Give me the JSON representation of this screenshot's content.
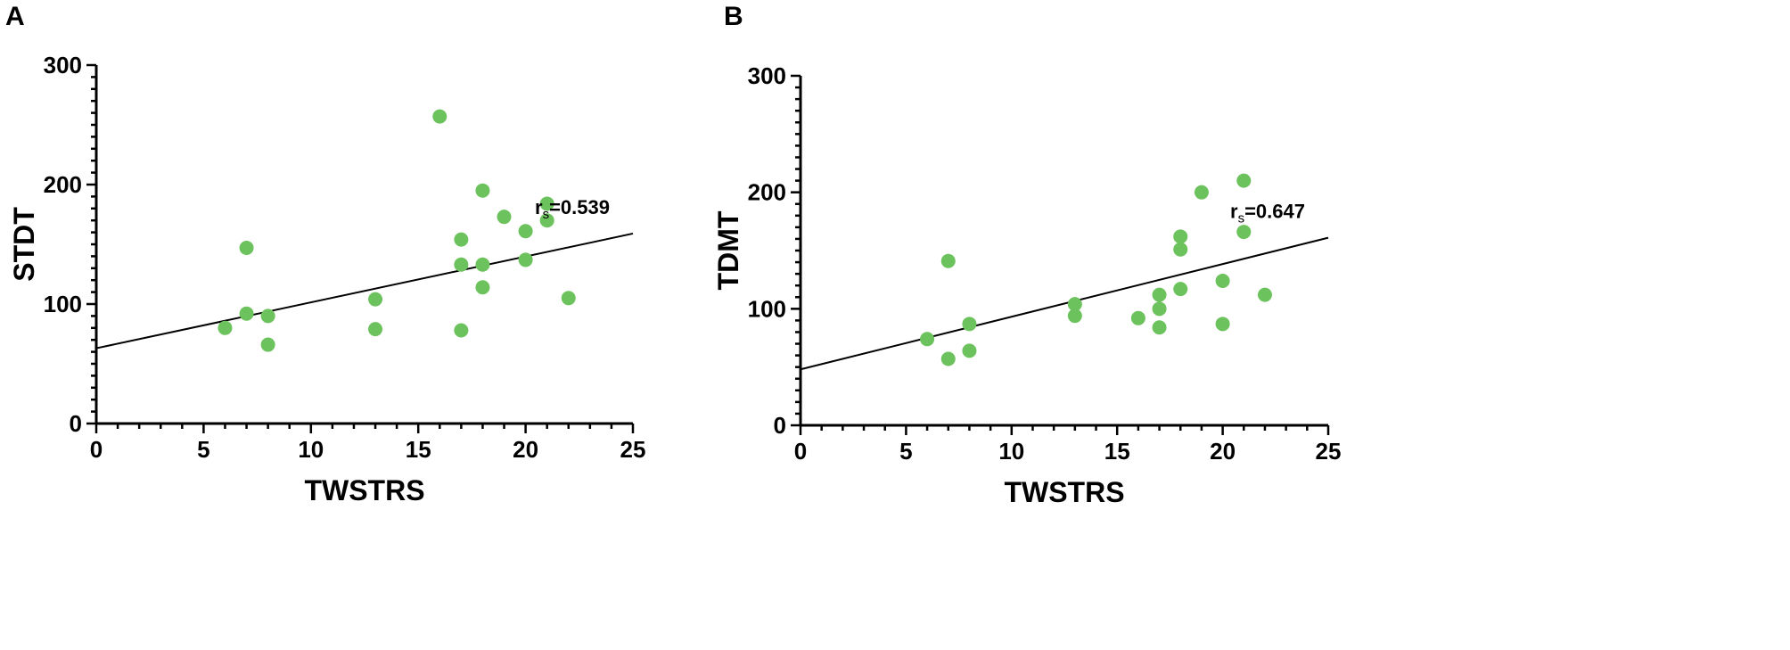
{
  "chart_data": [
    {
      "panel": "A",
      "type": "scatter",
      "xlabel": "TWSTRS",
      "ylabel": "STDT",
      "xlim": [
        0,
        25
      ],
      "ylim": [
        0,
        300
      ],
      "xticks": [
        "0",
        "5",
        "10",
        "15",
        "20",
        "25"
      ],
      "yticks": [
        "0",
        "100",
        "200",
        "300"
      ],
      "annotation": {
        "r": "r",
        "sub": "s",
        "value": "=0.539"
      },
      "regression_line": {
        "x": [
          0,
          25
        ],
        "y": [
          63,
          159
        ]
      },
      "points": [
        [
          6,
          80
        ],
        [
          7,
          147
        ],
        [
          7,
          92
        ],
        [
          8,
          90
        ],
        [
          8,
          66
        ],
        [
          13,
          104
        ],
        [
          13,
          79
        ],
        [
          16,
          257
        ],
        [
          17,
          154
        ],
        [
          17,
          133
        ],
        [
          17,
          78
        ],
        [
          18,
          195
        ],
        [
          18,
          133
        ],
        [
          18,
          114
        ],
        [
          19,
          173
        ],
        [
          20,
          161
        ],
        [
          20,
          137
        ],
        [
          21,
          184
        ],
        [
          21,
          170
        ],
        [
          22,
          105
        ]
      ],
      "color": "#6cc25c"
    },
    {
      "panel": "B",
      "type": "scatter",
      "xlabel": "TWSTRS",
      "ylabel": "TDMT",
      "xlim": [
        0,
        25
      ],
      "ylim": [
        0,
        300
      ],
      "xticks": [
        "0",
        "5",
        "10",
        "15",
        "20",
        "25"
      ],
      "yticks": [
        "0",
        "100",
        "200",
        "300"
      ],
      "annotation": {
        "r": "r",
        "sub": "s",
        "value": "=0.647"
      },
      "regression_line": {
        "x": [
          0,
          25
        ],
        "y": [
          48,
          161
        ]
      },
      "points": [
        [
          6,
          74
        ],
        [
          7,
          141
        ],
        [
          7,
          57
        ],
        [
          8,
          87
        ],
        [
          8,
          64
        ],
        [
          13,
          104
        ],
        [
          13,
          94
        ],
        [
          16,
          92
        ],
        [
          17,
          112
        ],
        [
          17,
          100
        ],
        [
          17,
          84
        ],
        [
          18,
          162
        ],
        [
          18,
          151
        ],
        [
          18,
          117
        ],
        [
          19,
          200
        ],
        [
          20,
          124
        ],
        [
          20,
          87
        ],
        [
          21,
          210
        ],
        [
          21,
          166
        ],
        [
          22,
          112
        ]
      ],
      "color": "#6cc25c"
    }
  ]
}
